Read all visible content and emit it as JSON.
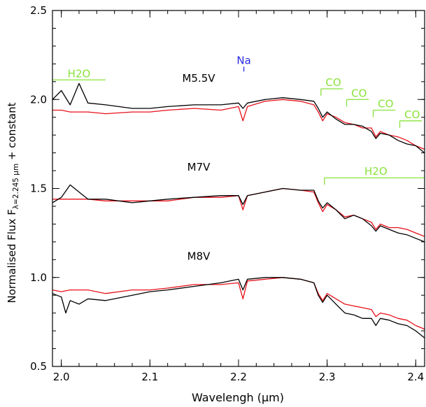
{
  "chart_data": {
    "type": "line",
    "xlabel": "Wavelengh (μm)",
    "ylabel": {
      "prefix": "Normalised Flux F",
      "subscript": "λ=2.245 μm",
      "suffix": " + constant"
    },
    "xlim": [
      1.99,
      2.41
    ],
    "ylim": [
      0.5,
      2.5
    ],
    "xticks": [
      2.0,
      2.1,
      2.2,
      2.3,
      2.4
    ],
    "xtick_labels": [
      "2.0",
      "2.1",
      "2.2",
      "2.3",
      "2.4"
    ],
    "yticks": [
      0.5,
      1.0,
      1.5,
      2.0,
      2.5
    ],
    "ytick_labels": [
      "0.5",
      "1.0",
      "1.5",
      "2.0",
      "2.5"
    ],
    "grid": false,
    "colors": {
      "black": "#000000",
      "red": "#e8111a",
      "feature": "#88e23a",
      "sodium": "#2a2ae6"
    },
    "spectra": [
      {
        "label": "M5.5V",
        "label_pos": [
          2.155,
          2.1
        ],
        "black": {
          "x": [
            1.99,
            2.0,
            2.01,
            2.02,
            2.03,
            2.05,
            2.08,
            2.1,
            2.12,
            2.15,
            2.18,
            2.2,
            2.205,
            2.21,
            2.23,
            2.25,
            2.27,
            2.285,
            2.29,
            2.295,
            2.3,
            2.31,
            2.32,
            2.33,
            2.34,
            2.35,
            2.355,
            2.36,
            2.37,
            2.38,
            2.39,
            2.4,
            2.41
          ],
          "y": [
            2.0,
            2.05,
            1.97,
            2.09,
            1.98,
            1.97,
            1.95,
            1.95,
            1.96,
            1.97,
            1.97,
            1.98,
            1.95,
            1.98,
            2.0,
            2.01,
            2.0,
            1.99,
            1.95,
            1.9,
            1.93,
            1.89,
            1.86,
            1.86,
            1.85,
            1.82,
            1.78,
            1.81,
            1.8,
            1.77,
            1.75,
            1.74,
            1.7
          ]
        },
        "red": {
          "x": [
            1.99,
            2.0,
            2.01,
            2.03,
            2.05,
            2.08,
            2.1,
            2.12,
            2.15,
            2.18,
            2.2,
            2.205,
            2.21,
            2.23,
            2.25,
            2.27,
            2.285,
            2.29,
            2.295,
            2.3,
            2.31,
            2.32,
            2.33,
            2.34,
            2.35,
            2.355,
            2.36,
            2.37,
            2.38,
            2.39,
            2.4,
            2.41
          ],
          "y": [
            1.94,
            1.94,
            1.93,
            1.93,
            1.92,
            1.93,
            1.93,
            1.94,
            1.95,
            1.94,
            1.96,
            1.88,
            1.96,
            1.99,
            2.0,
            1.99,
            1.97,
            1.93,
            1.88,
            1.92,
            1.9,
            1.87,
            1.86,
            1.84,
            1.84,
            1.79,
            1.82,
            1.8,
            1.79,
            1.77,
            1.74,
            1.72
          ]
        }
      },
      {
        "label": "M7V",
        "label_pos": [
          2.155,
          1.6
        ],
        "black": {
          "x": [
            1.99,
            2.0,
            2.01,
            2.02,
            2.03,
            2.05,
            2.08,
            2.1,
            2.12,
            2.15,
            2.18,
            2.2,
            2.205,
            2.21,
            2.23,
            2.25,
            2.27,
            2.285,
            2.29,
            2.295,
            2.3,
            2.31,
            2.32,
            2.33,
            2.34,
            2.35,
            2.355,
            2.36,
            2.37,
            2.38,
            2.39,
            2.4,
            2.41
          ],
          "y": [
            1.42,
            1.45,
            1.52,
            1.48,
            1.44,
            1.44,
            1.42,
            1.43,
            1.44,
            1.45,
            1.46,
            1.46,
            1.41,
            1.46,
            1.48,
            1.5,
            1.49,
            1.49,
            1.43,
            1.39,
            1.42,
            1.38,
            1.33,
            1.35,
            1.33,
            1.29,
            1.26,
            1.29,
            1.27,
            1.25,
            1.24,
            1.22,
            1.2
          ]
        },
        "red": {
          "x": [
            1.99,
            2.0,
            2.01,
            2.03,
            2.05,
            2.08,
            2.1,
            2.12,
            2.15,
            2.18,
            2.2,
            2.205,
            2.21,
            2.23,
            2.25,
            2.27,
            2.285,
            2.29,
            2.295,
            2.3,
            2.31,
            2.32,
            2.33,
            2.34,
            2.35,
            2.355,
            2.36,
            2.37,
            2.38,
            2.39,
            2.4,
            2.41
          ],
          "y": [
            1.44,
            1.44,
            1.44,
            1.44,
            1.43,
            1.43,
            1.43,
            1.43,
            1.45,
            1.45,
            1.46,
            1.38,
            1.46,
            1.48,
            1.5,
            1.49,
            1.48,
            1.42,
            1.37,
            1.41,
            1.38,
            1.34,
            1.35,
            1.33,
            1.31,
            1.27,
            1.3,
            1.28,
            1.28,
            1.27,
            1.25,
            1.23
          ]
        }
      },
      {
        "label": "M8V",
        "label_pos": [
          2.155,
          1.1
        ],
        "black": {
          "x": [
            1.99,
            2.0,
            2.005,
            2.01,
            2.02,
            2.03,
            2.05,
            2.08,
            2.1,
            2.12,
            2.15,
            2.18,
            2.2,
            2.205,
            2.21,
            2.23,
            2.25,
            2.27,
            2.285,
            2.29,
            2.295,
            2.3,
            2.31,
            2.32,
            2.33,
            2.34,
            2.35,
            2.355,
            2.36,
            2.37,
            2.38,
            2.39,
            2.4,
            2.41
          ],
          "y": [
            0.91,
            0.89,
            0.8,
            0.87,
            0.85,
            0.88,
            0.87,
            0.9,
            0.92,
            0.93,
            0.95,
            0.97,
            0.99,
            0.93,
            0.99,
            1.0,
            1.0,
            0.99,
            0.97,
            0.9,
            0.86,
            0.9,
            0.85,
            0.8,
            0.79,
            0.77,
            0.77,
            0.73,
            0.77,
            0.76,
            0.74,
            0.73,
            0.7,
            0.66
          ]
        },
        "red": {
          "x": [
            1.99,
            2.0,
            2.01,
            2.03,
            2.05,
            2.08,
            2.1,
            2.12,
            2.15,
            2.18,
            2.2,
            2.205,
            2.21,
            2.23,
            2.25,
            2.27,
            2.285,
            2.29,
            2.295,
            2.3,
            2.31,
            2.32,
            2.33,
            2.34,
            2.35,
            2.355,
            2.36,
            2.37,
            2.38,
            2.39,
            2.4,
            2.41
          ],
          "y": [
            0.93,
            0.92,
            0.93,
            0.93,
            0.91,
            0.93,
            0.93,
            0.94,
            0.96,
            0.96,
            0.97,
            0.88,
            0.98,
            0.99,
            1.0,
            0.99,
            0.97,
            0.91,
            0.87,
            0.91,
            0.88,
            0.85,
            0.84,
            0.83,
            0.82,
            0.78,
            0.8,
            0.79,
            0.77,
            0.76,
            0.73,
            0.71
          ]
        }
      }
    ],
    "features": [
      {
        "label": "H2O",
        "color": "#88e23a",
        "x_start": 1.99,
        "x_end": 2.05,
        "y": 2.11,
        "tick": false,
        "label_x": 2.02
      },
      {
        "label": "CO",
        "color": "#88e23a",
        "x_start": 2.293,
        "x_end": 2.318,
        "y": 2.06,
        "tick": true,
        "label_x": 2.307
      },
      {
        "label": "CO",
        "color": "#88e23a",
        "x_start": 2.322,
        "x_end": 2.347,
        "y": 2.0,
        "tick": true,
        "label_x": 2.336
      },
      {
        "label": "CO",
        "color": "#88e23a",
        "x_start": 2.352,
        "x_end": 2.377,
        "y": 1.94,
        "tick": true,
        "label_x": 2.366
      },
      {
        "label": "CO",
        "color": "#88e23a",
        "x_start": 2.382,
        "x_end": 2.407,
        "y": 1.88,
        "tick": true,
        "label_x": 2.396
      },
      {
        "label": "H2O",
        "color": "#88e23a",
        "x_start": 2.297,
        "x_end": 2.41,
        "y": 1.56,
        "tick": true,
        "label_x": 2.355
      }
    ],
    "annotations": [
      {
        "label": "Na",
        "color": "#2a2ae6",
        "x": 2.206,
        "y": 2.2
      }
    ]
  }
}
